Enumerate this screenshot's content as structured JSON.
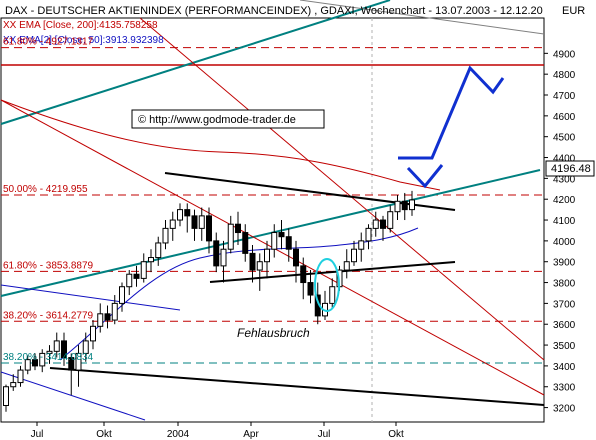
{
  "header": {
    "title": "DAX  - DEUTSCHER AKTIENINDEX (PERFORMANCEINDEX) , GDAXI, Wochenchart - 13.07.2003 - 12.12.20",
    "currency": "EUR"
  },
  "legend": [
    {
      "text": "XX EMA [Close, 200]:4135.758258",
      "color": "#c00000"
    },
    {
      "text": "XX EMA[2] [Close, 50]:3913.932398",
      "color": "#1010c0"
    }
  ],
  "watermark": "© http://www.godmode-trader.de",
  "annotation": {
    "text": "Fehlausbruch"
  },
  "fib_levels": [
    {
      "label": "61.80% - 4927.1317",
      "value": 4927.1317,
      "color": "#c00000"
    },
    {
      "label": "50.00% - 4219.955",
      "value": 4219.955,
      "color": "#c00000"
    },
    {
      "label": "61.80% - 3853.8879",
      "value": 3853.8879,
      "color": "#c00000"
    },
    {
      "label": "38.20% - 3614.2779",
      "value": 3614.2779,
      "color": "#c00000"
    },
    {
      "label": "38.20% - 3414.0834",
      "value": 3414.0834,
      "color": "#008080"
    }
  ],
  "price_tag": "4196.48",
  "chart_data": {
    "type": "candlestick",
    "ylim": [
      3150,
      5050
    ],
    "x_tick_labels": [
      "Jul",
      "Okt",
      "2004",
      "Apr",
      "Jul",
      "Okt"
    ],
    "y_tick_labels": [
      "3200",
      "3300",
      "3400",
      "3500",
      "3600",
      "3700",
      "3800",
      "3900",
      "4000",
      "4100",
      "4200",
      "4300",
      "4400",
      "4500",
      "4600",
      "4700",
      "4800",
      "4900"
    ],
    "last_close": 4196.48,
    "candles": [
      [
        3210,
        3300,
        3180,
        3310
      ],
      [
        3300,
        3320,
        3280,
        3360
      ],
      [
        3320,
        3380,
        3300,
        3400
      ],
      [
        3380,
        3430,
        3360,
        3450
      ],
      [
        3430,
        3400,
        3380,
        3460
      ],
      [
        3400,
        3460,
        3370,
        3480
      ],
      [
        3460,
        3470,
        3410,
        3500
      ],
      [
        3470,
        3520,
        3440,
        3560
      ],
      [
        3520,
        3440,
        3400,
        3560
      ],
      [
        3440,
        3380,
        3260,
        3460
      ],
      [
        3380,
        3460,
        3300,
        3500
      ],
      [
        3460,
        3520,
        3420,
        3560
      ],
      [
        3520,
        3590,
        3480,
        3620
      ],
      [
        3590,
        3650,
        3560,
        3700
      ],
      [
        3650,
        3620,
        3580,
        3690
      ],
      [
        3620,
        3700,
        3600,
        3740
      ],
      [
        3700,
        3780,
        3660,
        3800
      ],
      [
        3780,
        3840,
        3740,
        3860
      ],
      [
        3840,
        3820,
        3780,
        3880
      ],
      [
        3820,
        3900,
        3800,
        3940
      ],
      [
        3900,
        3920,
        3850,
        3960
      ],
      [
        3920,
        3990,
        3880,
        4020
      ],
      [
        3990,
        4060,
        3960,
        4100
      ],
      [
        4060,
        4100,
        4000,
        4140
      ],
      [
        4100,
        4150,
        4070,
        4180
      ],
      [
        4150,
        4120,
        4040,
        4180
      ],
      [
        4120,
        4060,
        4000,
        4150
      ],
      [
        4060,
        4120,
        4000,
        4160
      ],
      [
        4120,
        4000,
        3940,
        4160
      ],
      [
        4000,
        3880,
        3850,
        4040
      ],
      [
        3880,
        3960,
        3800,
        4000
      ],
      [
        3960,
        4080,
        3940,
        4120
      ],
      [
        4080,
        4040,
        3980,
        4140
      ],
      [
        4040,
        3940,
        3900,
        4080
      ],
      [
        3940,
        3860,
        3800,
        3980
      ],
      [
        3860,
        3900,
        3760,
        3940
      ],
      [
        3900,
        3960,
        3820,
        4000
      ],
      [
        3960,
        4040,
        3920,
        4080
      ],
      [
        4040,
        4020,
        3960,
        4100
      ],
      [
        4020,
        3960,
        3900,
        4060
      ],
      [
        3960,
        3880,
        3800,
        4000
      ],
      [
        3880,
        3800,
        3720,
        3920
      ],
      [
        3800,
        3740,
        3700,
        3860
      ],
      [
        3740,
        3640,
        3600,
        3800
      ],
      [
        3640,
        3700,
        3620,
        3760
      ],
      [
        3700,
        3780,
        3680,
        3820
      ],
      [
        3780,
        3860,
        3760,
        3880
      ],
      [
        3860,
        3900,
        3820,
        3960
      ],
      [
        3900,
        3960,
        3880,
        4000
      ],
      [
        3960,
        4000,
        3900,
        4040
      ],
      [
        4000,
        4060,
        3960,
        4080
      ],
      [
        4060,
        4100,
        4020,
        4140
      ],
      [
        4100,
        4060,
        4000,
        4120
      ],
      [
        4060,
        4140,
        4040,
        4170
      ],
      [
        4140,
        4190,
        4100,
        4220
      ],
      [
        4190,
        4150,
        4100,
        4230
      ],
      [
        4150,
        4196.48,
        4120,
        4240
      ]
    ],
    "ema_200_close": 4135.758258,
    "ema_50_close": 3913.932398
  }
}
